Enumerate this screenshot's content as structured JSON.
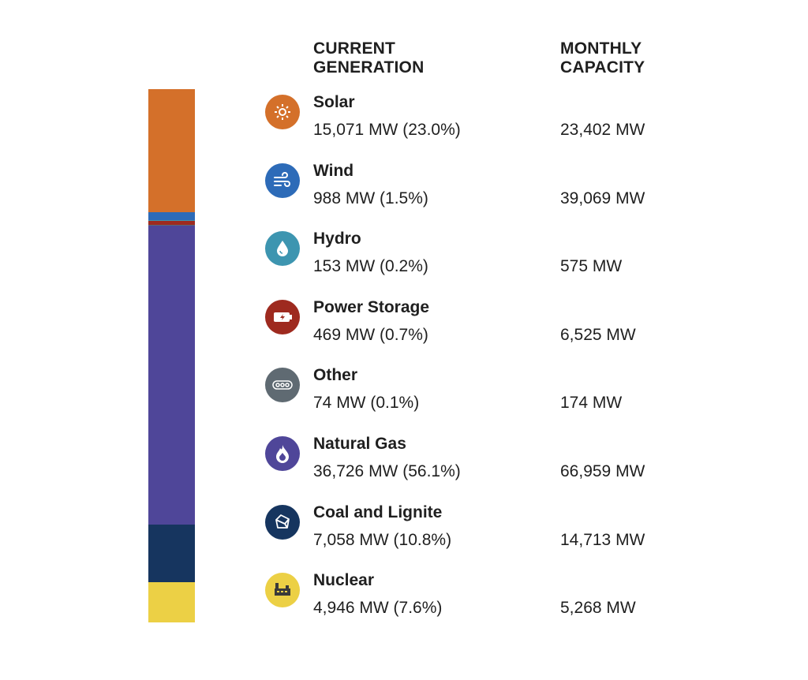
{
  "chart_data": {
    "type": "stacked_column_legend",
    "headers": [
      "CURRENT GENERATION",
      "MONTHLY CAPACITY"
    ],
    "categories": [
      "Solar",
      "Wind",
      "Hydro",
      "Power Storage",
      "Other",
      "Natural Gas",
      "Coal and Lignite",
      "Nuclear"
    ],
    "values": [
      15071,
      988,
      153,
      469,
      74,
      36726,
      7058,
      4946
    ],
    "value_labels": [
      "15,071 MW (23.0%)",
      "988 MW (1.5%)",
      "153 MW (0.2%)",
      "469 MW (0.7%)",
      "74 MW (0.1%)",
      "36,726 MW (56.1%)",
      "7,058 MW (10.8%)",
      "4,946 MW (7.6%)"
    ],
    "capacity_labels": [
      "23,402 MW",
      "39,069 MW",
      "575 MW",
      "6,525 MW",
      "174 MW",
      "66,959 MW",
      "14,713 MW",
      "5,268 MW"
    ],
    "colors": [
      "#d4702a",
      "#2d6bb8",
      "#3d95b0",
      "#9e2a1f",
      "#5f6a72",
      "#4f4699",
      "#16355f",
      "#ecd045"
    ]
  }
}
